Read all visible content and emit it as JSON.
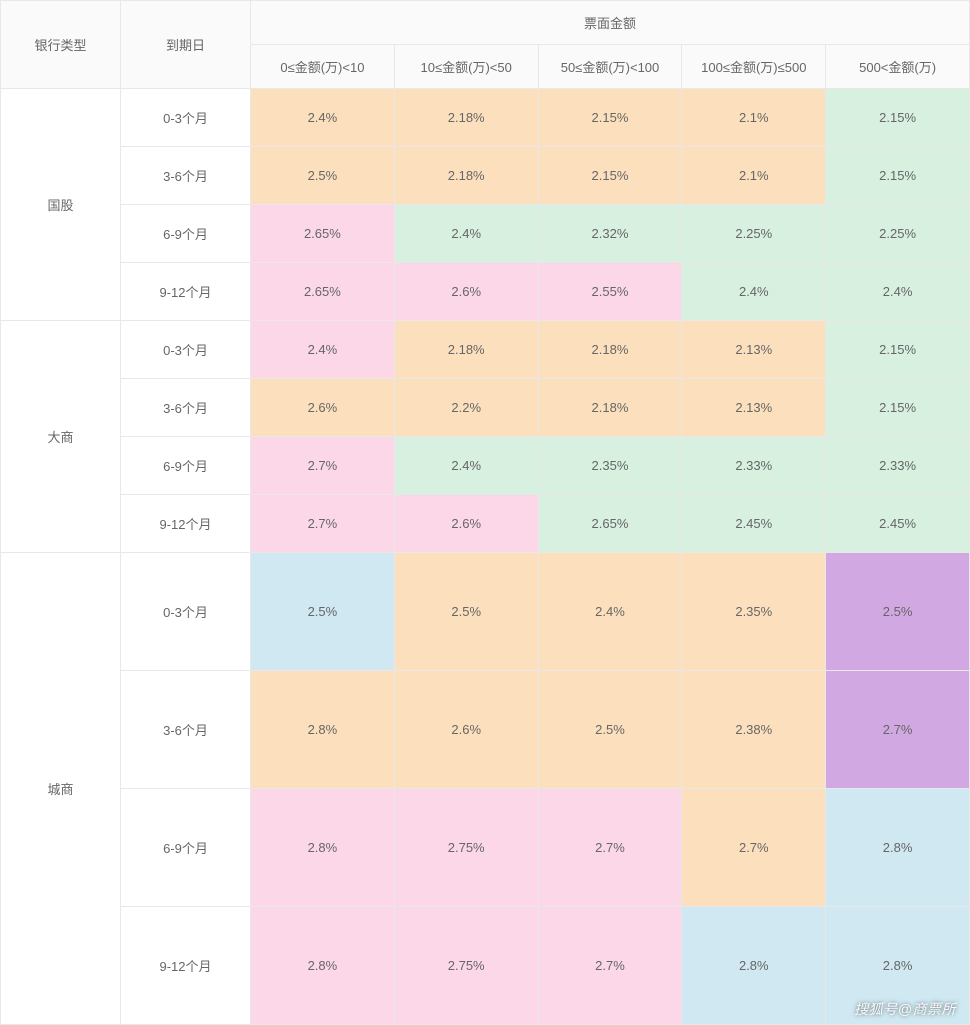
{
  "headers": {
    "bank_type": "银行类型",
    "maturity": "到期日",
    "amount_group": "票面金额",
    "amount_ranges": [
      "0≤金额(万)<10",
      "10≤金额(万)<50",
      "50≤金额(万)<100",
      "100≤金额(万)≤500",
      "500<金额(万)"
    ]
  },
  "colors": {
    "border": "#e8e8e8",
    "header_bg": "#fafafa",
    "text": "#666666",
    "orange": "#fce0bd",
    "pink": "#fbd7e8",
    "green": "#d7f0e0",
    "blue": "#cfe8f2",
    "purple": "#d2a8e2"
  },
  "row_heights": {
    "group1": 58,
    "group2": 58,
    "group3": 118
  },
  "bank_groups": [
    {
      "name": "国股",
      "row_height_key": "group1",
      "rows": [
        {
          "maturity": "0-3个月",
          "cells": [
            {
              "v": "2.4%",
              "c": "orange"
            },
            {
              "v": "2.18%",
              "c": "orange"
            },
            {
              "v": "2.15%",
              "c": "orange"
            },
            {
              "v": "2.1%",
              "c": "orange"
            },
            {
              "v": "2.15%",
              "c": "green"
            }
          ]
        },
        {
          "maturity": "3-6个月",
          "cells": [
            {
              "v": "2.5%",
              "c": "orange"
            },
            {
              "v": "2.18%",
              "c": "orange"
            },
            {
              "v": "2.15%",
              "c": "orange"
            },
            {
              "v": "2.1%",
              "c": "orange"
            },
            {
              "v": "2.15%",
              "c": "green"
            }
          ]
        },
        {
          "maturity": "6-9个月",
          "cells": [
            {
              "v": "2.65%",
              "c": "pink"
            },
            {
              "v": "2.4%",
              "c": "green"
            },
            {
              "v": "2.32%",
              "c": "green"
            },
            {
              "v": "2.25%",
              "c": "green"
            },
            {
              "v": "2.25%",
              "c": "green"
            }
          ]
        },
        {
          "maturity": "9-12个月",
          "cells": [
            {
              "v": "2.65%",
              "c": "pink"
            },
            {
              "v": "2.6%",
              "c": "pink"
            },
            {
              "v": "2.55%",
              "c": "pink"
            },
            {
              "v": "2.4%",
              "c": "green"
            },
            {
              "v": "2.4%",
              "c": "green"
            }
          ]
        }
      ]
    },
    {
      "name": "大商",
      "row_height_key": "group2",
      "rows": [
        {
          "maturity": "0-3个月",
          "cells": [
            {
              "v": "2.4%",
              "c": "pink"
            },
            {
              "v": "2.18%",
              "c": "orange"
            },
            {
              "v": "2.18%",
              "c": "orange"
            },
            {
              "v": "2.13%",
              "c": "orange"
            },
            {
              "v": "2.15%",
              "c": "green"
            }
          ]
        },
        {
          "maturity": "3-6个月",
          "cells": [
            {
              "v": "2.6%",
              "c": "orange"
            },
            {
              "v": "2.2%",
              "c": "orange"
            },
            {
              "v": "2.18%",
              "c": "orange"
            },
            {
              "v": "2.13%",
              "c": "orange"
            },
            {
              "v": "2.15%",
              "c": "green"
            }
          ]
        },
        {
          "maturity": "6-9个月",
          "cells": [
            {
              "v": "2.7%",
              "c": "pink"
            },
            {
              "v": "2.4%",
              "c": "green"
            },
            {
              "v": "2.35%",
              "c": "green"
            },
            {
              "v": "2.33%",
              "c": "green"
            },
            {
              "v": "2.33%",
              "c": "green"
            }
          ]
        },
        {
          "maturity": "9-12个月",
          "cells": [
            {
              "v": "2.7%",
              "c": "pink"
            },
            {
              "v": "2.6%",
              "c": "pink"
            },
            {
              "v": "2.65%",
              "c": "green"
            },
            {
              "v": "2.45%",
              "c": "green"
            },
            {
              "v": "2.45%",
              "c": "green"
            }
          ]
        }
      ]
    },
    {
      "name": "城商",
      "row_height_key": "group3",
      "rows": [
        {
          "maturity": "0-3个月",
          "cells": [
            {
              "v": "2.5%",
              "c": "blue"
            },
            {
              "v": "2.5%",
              "c": "orange"
            },
            {
              "v": "2.4%",
              "c": "orange"
            },
            {
              "v": "2.35%",
              "c": "orange"
            },
            {
              "v": "2.5%",
              "c": "purple"
            }
          ]
        },
        {
          "maturity": "3-6个月",
          "cells": [
            {
              "v": "2.8%",
              "c": "orange"
            },
            {
              "v": "2.6%",
              "c": "orange"
            },
            {
              "v": "2.5%",
              "c": "orange"
            },
            {
              "v": "2.38%",
              "c": "orange"
            },
            {
              "v": "2.7%",
              "c": "purple"
            }
          ]
        },
        {
          "maturity": "6-9个月",
          "cells": [
            {
              "v": "2.8%",
              "c": "pink"
            },
            {
              "v": "2.75%",
              "c": "pink"
            },
            {
              "v": "2.7%",
              "c": "pink"
            },
            {
              "v": "2.7%",
              "c": "orange"
            },
            {
              "v": "2.8%",
              "c": "blue"
            }
          ]
        },
        {
          "maturity": "9-12个月",
          "cells": [
            {
              "v": "2.8%",
              "c": "pink"
            },
            {
              "v": "2.75%",
              "c": "pink"
            },
            {
              "v": "2.7%",
              "c": "pink"
            },
            {
              "v": "2.8%",
              "c": "blue"
            },
            {
              "v": "2.8%",
              "c": "blue"
            }
          ]
        }
      ]
    }
  ],
  "watermark": "搜狐号@商票所"
}
